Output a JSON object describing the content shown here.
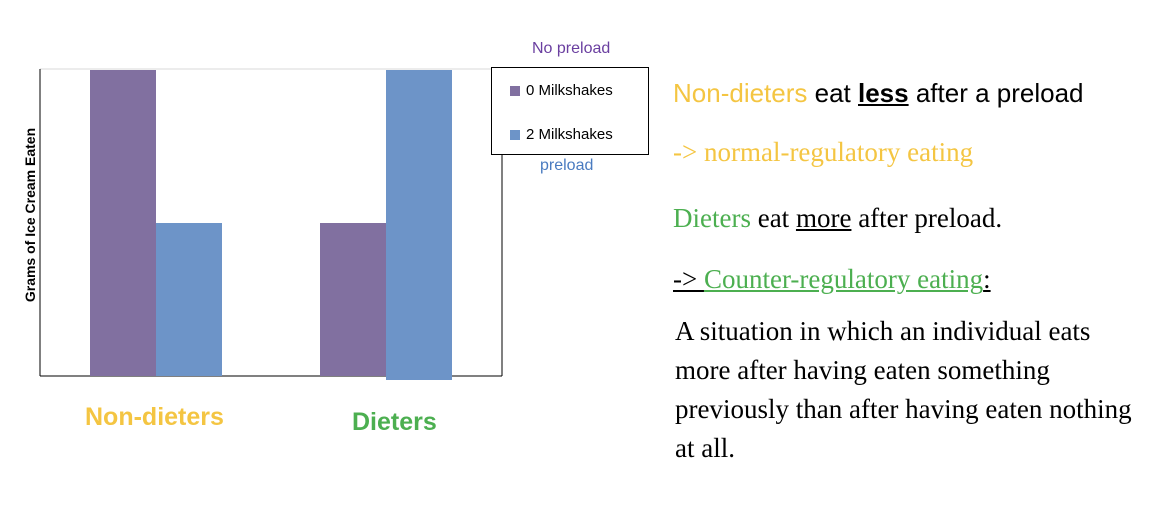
{
  "chart_data": {
    "type": "bar",
    "categories": [
      "Non-dieters",
      "Dieters"
    ],
    "series": [
      {
        "name": "0 Milkshakes",
        "values": [
          100,
          50
        ],
        "color": "#8170a0"
      },
      {
        "name": "2 Milkshakes",
        "values": [
          50,
          100
        ],
        "color": "#6d94c8"
      }
    ],
    "ylabel": "Grams of Ice Cream Eaten",
    "ylim": [
      0,
      100
    ],
    "grid": false,
    "legend": "top-right",
    "category_colors": [
      "#f4c542",
      "#4caf50"
    ],
    "annotations": [
      "No preload",
      "preload"
    ]
  },
  "text": {
    "line1": {
      "nondieters": "Non-dieters",
      "eat": " eat ",
      "less": "less",
      "rest": " after a preload"
    },
    "line2": "-> normal-regulatory eating",
    "line3": {
      "dieters": "Dieters",
      "eat": " eat ",
      "more": "more",
      "rest": " after preload."
    },
    "line4": {
      "arrow": "-> ",
      "term": "Counter-regulatory eating",
      "colon": ":"
    },
    "definition": "A situation in which an individual eats more after having eaten something previously than after having eaten nothing at all."
  }
}
